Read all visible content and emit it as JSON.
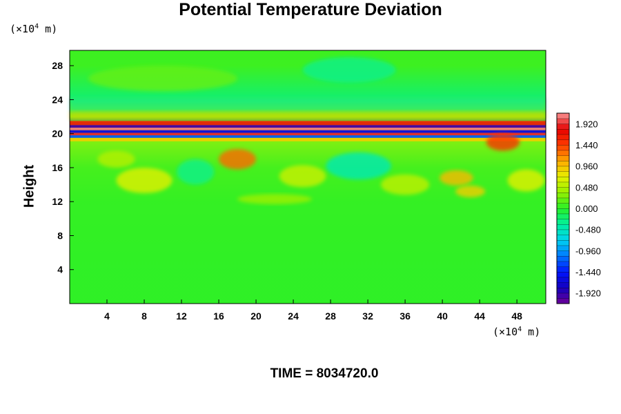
{
  "title": "Potential Temperature Deviation",
  "y_unit": {
    "prefix": "(×10",
    "exp": "4",
    "suffix": " m)"
  },
  "x_unit": {
    "prefix": "(×10",
    "exp": "4",
    "suffix": " m)"
  },
  "time_label": "TIME = 8034720.0",
  "chart_data": {
    "type": "heatmap",
    "title": "Potential Temperature Deviation",
    "ylabel": "Height",
    "xlim": [
      0,
      51.1
    ],
    "ylim": [
      0,
      29.8
    ],
    "x_ticks": [
      4,
      8,
      12,
      16,
      20,
      24,
      28,
      32,
      36,
      40,
      44,
      48
    ],
    "y_ticks": [
      4,
      8,
      12,
      16,
      20,
      24,
      28
    ],
    "colorbar": {
      "min": -2.16,
      "max": 2.16,
      "step": 0.12,
      "tick_labels": [
        "1.920",
        "1.440",
        "0.960",
        "0.480",
        "0.000",
        "-0.480",
        "-0.960",
        "-1.440",
        "-1.920"
      ],
      "tick_values": [
        1.92,
        1.44,
        0.96,
        0.48,
        0.0,
        -0.48,
        -0.96,
        -1.44,
        -1.92
      ]
    },
    "field_description_rows": [
      {
        "y": 28.0,
        "value": 0.1
      },
      {
        "y": 24.5,
        "value": -0.35
      },
      {
        "y": 22.0,
        "value": 0.5
      },
      {
        "y": 21.0,
        "value": -1.9
      },
      {
        "y": 20.5,
        "value": 1.9
      },
      {
        "y": 20.0,
        "value": -1.9
      },
      {
        "y": 19.5,
        "value": 0.6
      },
      {
        "y": 16.0,
        "value": 0.15
      },
      {
        "y": 12.0,
        "value": 0.05
      },
      {
        "y": 4.0,
        "value": 0.02
      }
    ]
  }
}
